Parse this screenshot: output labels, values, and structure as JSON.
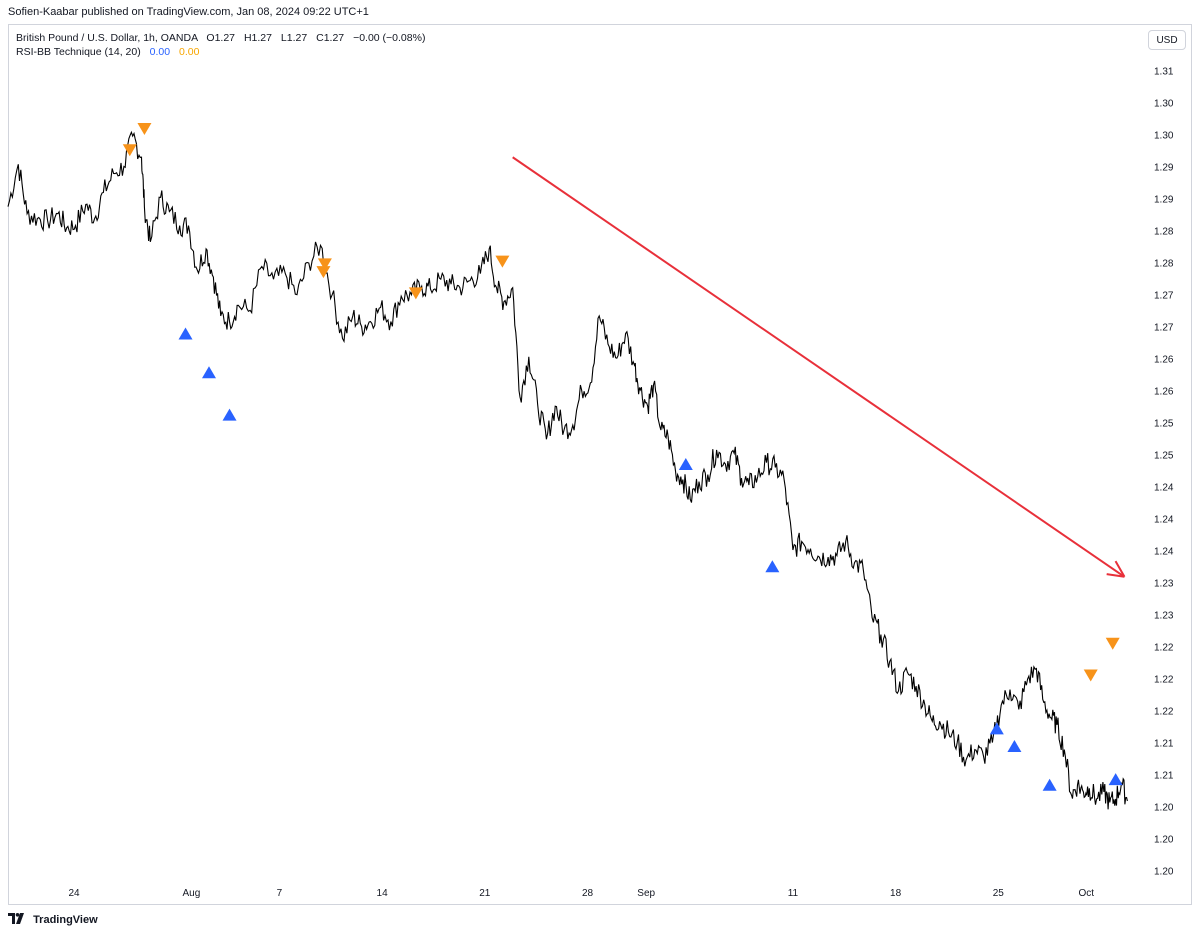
{
  "publisher": {
    "text": "Sofien-Kaabar published on TradingView.com, Jan 08, 2024 09:22 UTC+1"
  },
  "legend": {
    "symbol": "British Pound / U.S. Dollar, 1h, OANDA",
    "ohlc": {
      "open": "O1.27",
      "high": "H1.27",
      "low": "L1.27",
      "close": "C1.27",
      "change": "−0.00 (−0.08%)"
    },
    "indicator": {
      "name": "RSI-BB Technique (14, 20)",
      "value_a": "0.00",
      "value_b": "0.00"
    }
  },
  "currency_button": "USD",
  "footer": {
    "brand": "TradingView"
  },
  "colors": {
    "line": "#000000",
    "buy_signal": "#2962ff",
    "sell_signal": "#f7931a",
    "trend_arrow": "#e8303a",
    "axis_text": "#131722",
    "border": "#d1d4dc"
  },
  "chart_data": {
    "type": "line",
    "price_axis": {
      "tick_labels": [
        "1.31",
        "1.30",
        "1.30",
        "1.29",
        "1.29",
        "1.28",
        "1.28",
        "1.27",
        "1.27",
        "1.26",
        "1.26",
        "1.25",
        "1.25",
        "1.24",
        "1.24",
        "1.24",
        "1.23",
        "1.23",
        "1.22",
        "1.22",
        "1.22",
        "1.21",
        "1.21",
        "1.20",
        "1.20",
        "1.20"
      ],
      "range": [
        1.196,
        1.313
      ]
    },
    "time_axis": {
      "tick_labels": [
        "24",
        "Aug",
        "7",
        "14",
        "21",
        "28",
        "Sep",
        "11",
        "18",
        "25",
        "Oct"
      ],
      "tick_days": [
        24,
        32,
        38,
        45,
        52,
        59,
        63,
        73,
        80,
        87,
        93
      ],
      "range": [
        19.5,
        97.0
      ]
    },
    "series": [
      {
        "x": [
          19.5,
          20.2,
          20.8,
          21.5,
          22.2,
          22.9,
          23.5,
          24.1,
          24.8,
          25.4,
          26.0,
          26.7,
          27.4,
          28.0,
          28.6,
          28.8,
          29.2,
          29.9,
          30.5,
          31.2,
          31.8,
          32.4,
          33.0,
          33.5,
          34.0,
          34.6,
          35.2,
          36.0,
          36.8,
          37.6,
          38.4,
          39.2,
          40.0,
          40.8,
          41.6,
          42.3,
          43.0,
          43.6,
          44.2,
          44.9,
          45.6,
          46.3,
          47.0,
          47.7,
          48.3,
          49.0,
          49.7,
          50.3,
          51.0,
          51.7,
          52.3,
          52.8,
          53.3,
          53.9,
          54.4,
          55.0,
          55.6,
          56.2,
          56.8,
          57.4,
          58.0,
          58.6,
          59.2,
          59.8,
          60.4,
          61.0,
          61.6,
          62.2,
          62.6,
          63.1,
          63.5,
          64.0,
          64.5,
          65.0,
          65.5,
          66.0,
          66.6,
          67.2,
          67.8,
          68.4,
          69.0,
          69.5,
          70.0,
          70.6,
          71.2,
          71.8,
          72.4,
          73.0,
          73.6,
          74.2,
          74.8,
          75.4,
          76.0,
          76.6,
          77.2,
          77.8,
          78.4,
          79.0,
          79.6,
          80.2,
          80.8,
          81.4,
          82.0,
          82.5,
          83.0,
          83.6,
          84.2,
          84.8,
          85.4,
          86.0,
          86.6,
          87.2,
          87.8,
          88.4,
          89.0,
          89.6,
          90.1,
          90.6,
          91.0,
          91.5,
          92.0,
          92.4,
          92.8,
          93.2,
          93.7,
          94.2,
          94.6,
          95.0,
          95.4,
          95.8
        ],
        "y": [
          1.2915,
          1.2975,
          1.2905,
          1.2898,
          1.2895,
          1.2905,
          1.2885,
          1.2888,
          1.2918,
          1.2898,
          1.2935,
          1.2962,
          1.2972,
          1.3015,
          1.2985,
          1.2915,
          1.2865,
          1.2928,
          1.2908,
          1.2888,
          1.2888,
          1.2825,
          1.2855,
          1.2815,
          1.276,
          1.2752,
          1.2775,
          1.2768,
          1.283,
          1.2812,
          1.282,
          1.279,
          1.2835,
          1.286,
          1.279,
          1.2728,
          1.276,
          1.2745,
          1.2752,
          1.2772,
          1.2752,
          1.2788,
          1.279,
          1.2802,
          1.2798,
          1.2812,
          1.2805,
          1.28,
          1.281,
          1.282,
          1.2855,
          1.28,
          1.278,
          1.28,
          1.2645,
          1.2702,
          1.2635,
          1.2585,
          1.2632,
          1.2598,
          1.2605,
          1.2655,
          1.2665,
          1.276,
          1.272,
          1.27,
          1.2735,
          1.269,
          1.2655,
          1.2632,
          1.2662,
          1.2598,
          1.2588,
          1.254,
          1.2528,
          1.25,
          1.2525,
          1.2535,
          1.257,
          1.255,
          1.2565,
          1.253,
          1.252,
          1.2532,
          1.2552,
          1.2545,
          1.2528,
          1.2428,
          1.244,
          1.243,
          1.2418,
          1.2418,
          1.242,
          1.244,
          1.241,
          1.24,
          1.2332,
          1.2308,
          1.227,
          1.2228,
          1.2255,
          1.2235,
          1.2208,
          1.2185,
          1.2185,
          1.217,
          1.2155,
          1.213,
          1.2145,
          1.2135,
          1.2155,
          1.2208,
          1.223,
          1.2202,
          1.2245,
          1.226,
          1.2212,
          1.219,
          1.218,
          1.2145,
          1.208,
          1.2095,
          1.2085,
          1.209,
          1.2075,
          1.2085,
          1.207,
          1.2075,
          1.2098,
          1.2072
        ]
      }
    ],
    "buy_signals": [
      {
        "x": 31.6,
        "y": 1.2735
      },
      {
        "x": 33.2,
        "y": 1.268
      },
      {
        "x": 34.6,
        "y": 1.262
      },
      {
        "x": 65.7,
        "y": 1.255
      },
      {
        "x": 71.6,
        "y": 1.2405
      },
      {
        "x": 86.9,
        "y": 1.2175
      },
      {
        "x": 88.1,
        "y": 1.215
      },
      {
        "x": 90.5,
        "y": 1.2095
      },
      {
        "x": 95.0,
        "y": 1.2103
      }
    ],
    "sell_signals": [
      {
        "x": 27.8,
        "y": 1.2995
      },
      {
        "x": 28.8,
        "y": 1.3025
      },
      {
        "x": 41.0,
        "y": 1.2822
      },
      {
        "x": 41.1,
        "y": 1.2833
      },
      {
        "x": 47.3,
        "y": 1.2792
      },
      {
        "x": 53.2,
        "y": 1.2837
      },
      {
        "x": 93.3,
        "y": 1.225
      },
      {
        "x": 94.8,
        "y": 1.2295
      }
    ],
    "trend_arrow": {
      "from": {
        "x": 53.9,
        "y": 1.2985
      },
      "to": {
        "x": 95.6,
        "y": 1.239
      }
    },
    "grid": false,
    "legend": "top-left"
  }
}
